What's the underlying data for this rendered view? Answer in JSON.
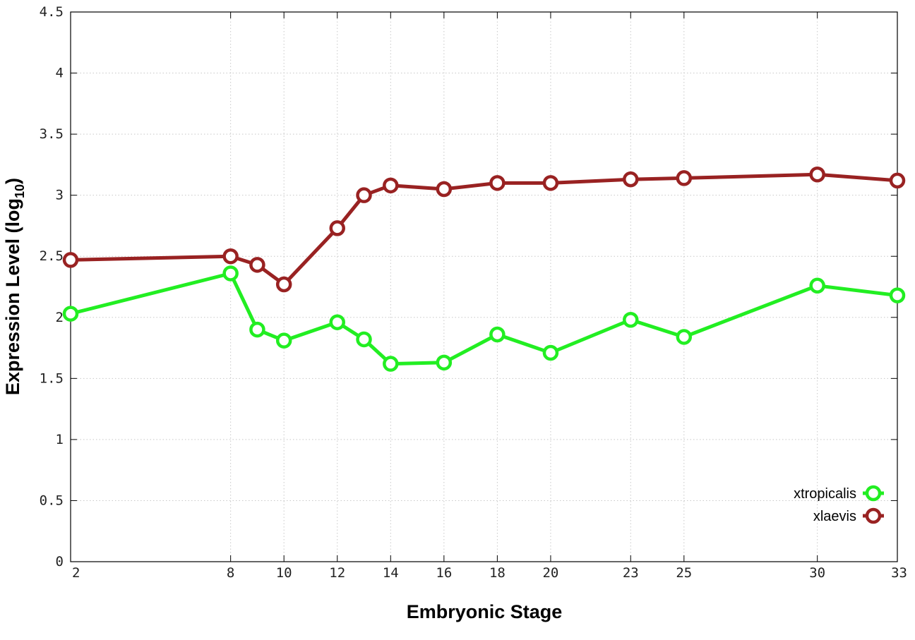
{
  "chart_data": {
    "type": "line",
    "title": "",
    "xlabel": "Embryonic Stage",
    "ylabel": {
      "prefix": "Expression Level (log",
      "subscript": "10",
      "suffix": ")"
    },
    "x": [
      2,
      8,
      9,
      10,
      12,
      13,
      14,
      16,
      18,
      20,
      23,
      25,
      30,
      33
    ],
    "x_ticks": [
      2,
      8,
      10,
      12,
      14,
      16,
      18,
      20,
      23,
      25,
      30,
      33
    ],
    "y_ticks": [
      "0",
      "0.5",
      "1",
      "1.5",
      "2",
      "2.5",
      "3",
      "3.5",
      "4",
      "4.5"
    ],
    "ylim": [
      0,
      4.5
    ],
    "grid": true,
    "legend_position": "bottom-right",
    "series": [
      {
        "name": "xtropicalis",
        "color": "#22ee22",
        "values": [
          2.03,
          2.36,
          1.9,
          1.81,
          1.96,
          1.82,
          1.62,
          1.63,
          1.86,
          1.71,
          1.98,
          1.84,
          2.26,
          2.18
        ]
      },
      {
        "name": "xlaevis",
        "color": "#992222",
        "values": [
          2.47,
          2.5,
          2.43,
          2.27,
          2.73,
          3.0,
          3.08,
          3.05,
          3.1,
          3.1,
          3.13,
          3.14,
          3.17,
          3.12
        ]
      }
    ]
  }
}
